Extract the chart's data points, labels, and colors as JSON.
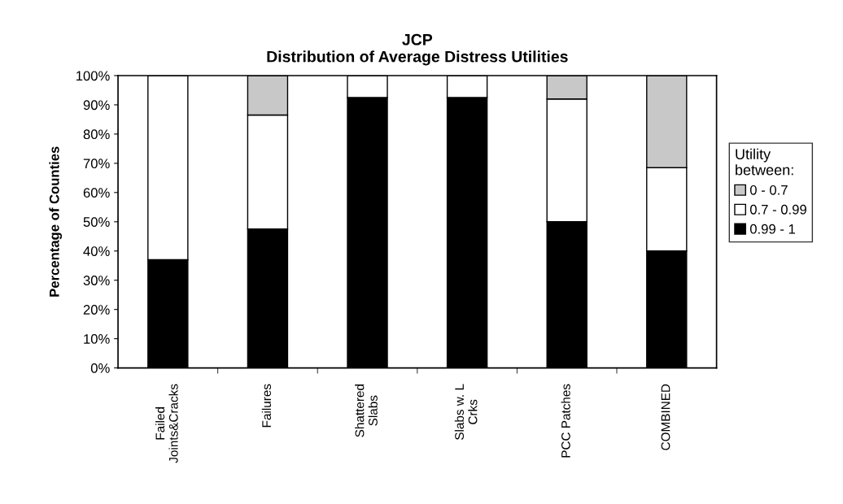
{
  "chart_data": {
    "type": "bar",
    "title": "JCP\nDistribution of Average Distress Utilities",
    "ylabel": "Percentage of Counties",
    "legend_title": "Utility\nbetween:",
    "categories": [
      "Failed\nJoints&Cracks",
      "Failures",
      "Shattered\nSlabs",
      "Slabs w. L\nCrks",
      "PCC Patches",
      "COMBINED"
    ],
    "stacked": true,
    "legend": "right",
    "grid": false,
    "ylim": [
      0,
      100
    ],
    "yticks": [
      {
        "value": 0,
        "label": "0%"
      },
      {
        "value": 10,
        "label": "10%"
      },
      {
        "value": 20,
        "label": "20%"
      },
      {
        "value": 30,
        "label": "30%"
      },
      {
        "value": 40,
        "label": "40%"
      },
      {
        "value": 50,
        "label": "50%"
      },
      {
        "value": 60,
        "label": "60%"
      },
      {
        "value": 70,
        "label": "70%"
      },
      {
        "value": 80,
        "label": "80%"
      },
      {
        "value": 90,
        "label": "90%"
      },
      {
        "value": 100,
        "label": "100%"
      }
    ],
    "series": [
      {
        "name": "0.99 - 1",
        "color": "#000000",
        "values": [
          37,
          47.5,
          92.5,
          92.5,
          50,
          40
        ]
      },
      {
        "name": "0.7 - 0.99",
        "color": "#ffffff",
        "values": [
          63,
          39,
          7.5,
          7.5,
          42,
          28.5
        ]
      },
      {
        "name": "0 - 0.7",
        "color": "#c8c8c8",
        "values": [
          null,
          13.5,
          null,
          null,
          8,
          31.5
        ]
      }
    ]
  }
}
